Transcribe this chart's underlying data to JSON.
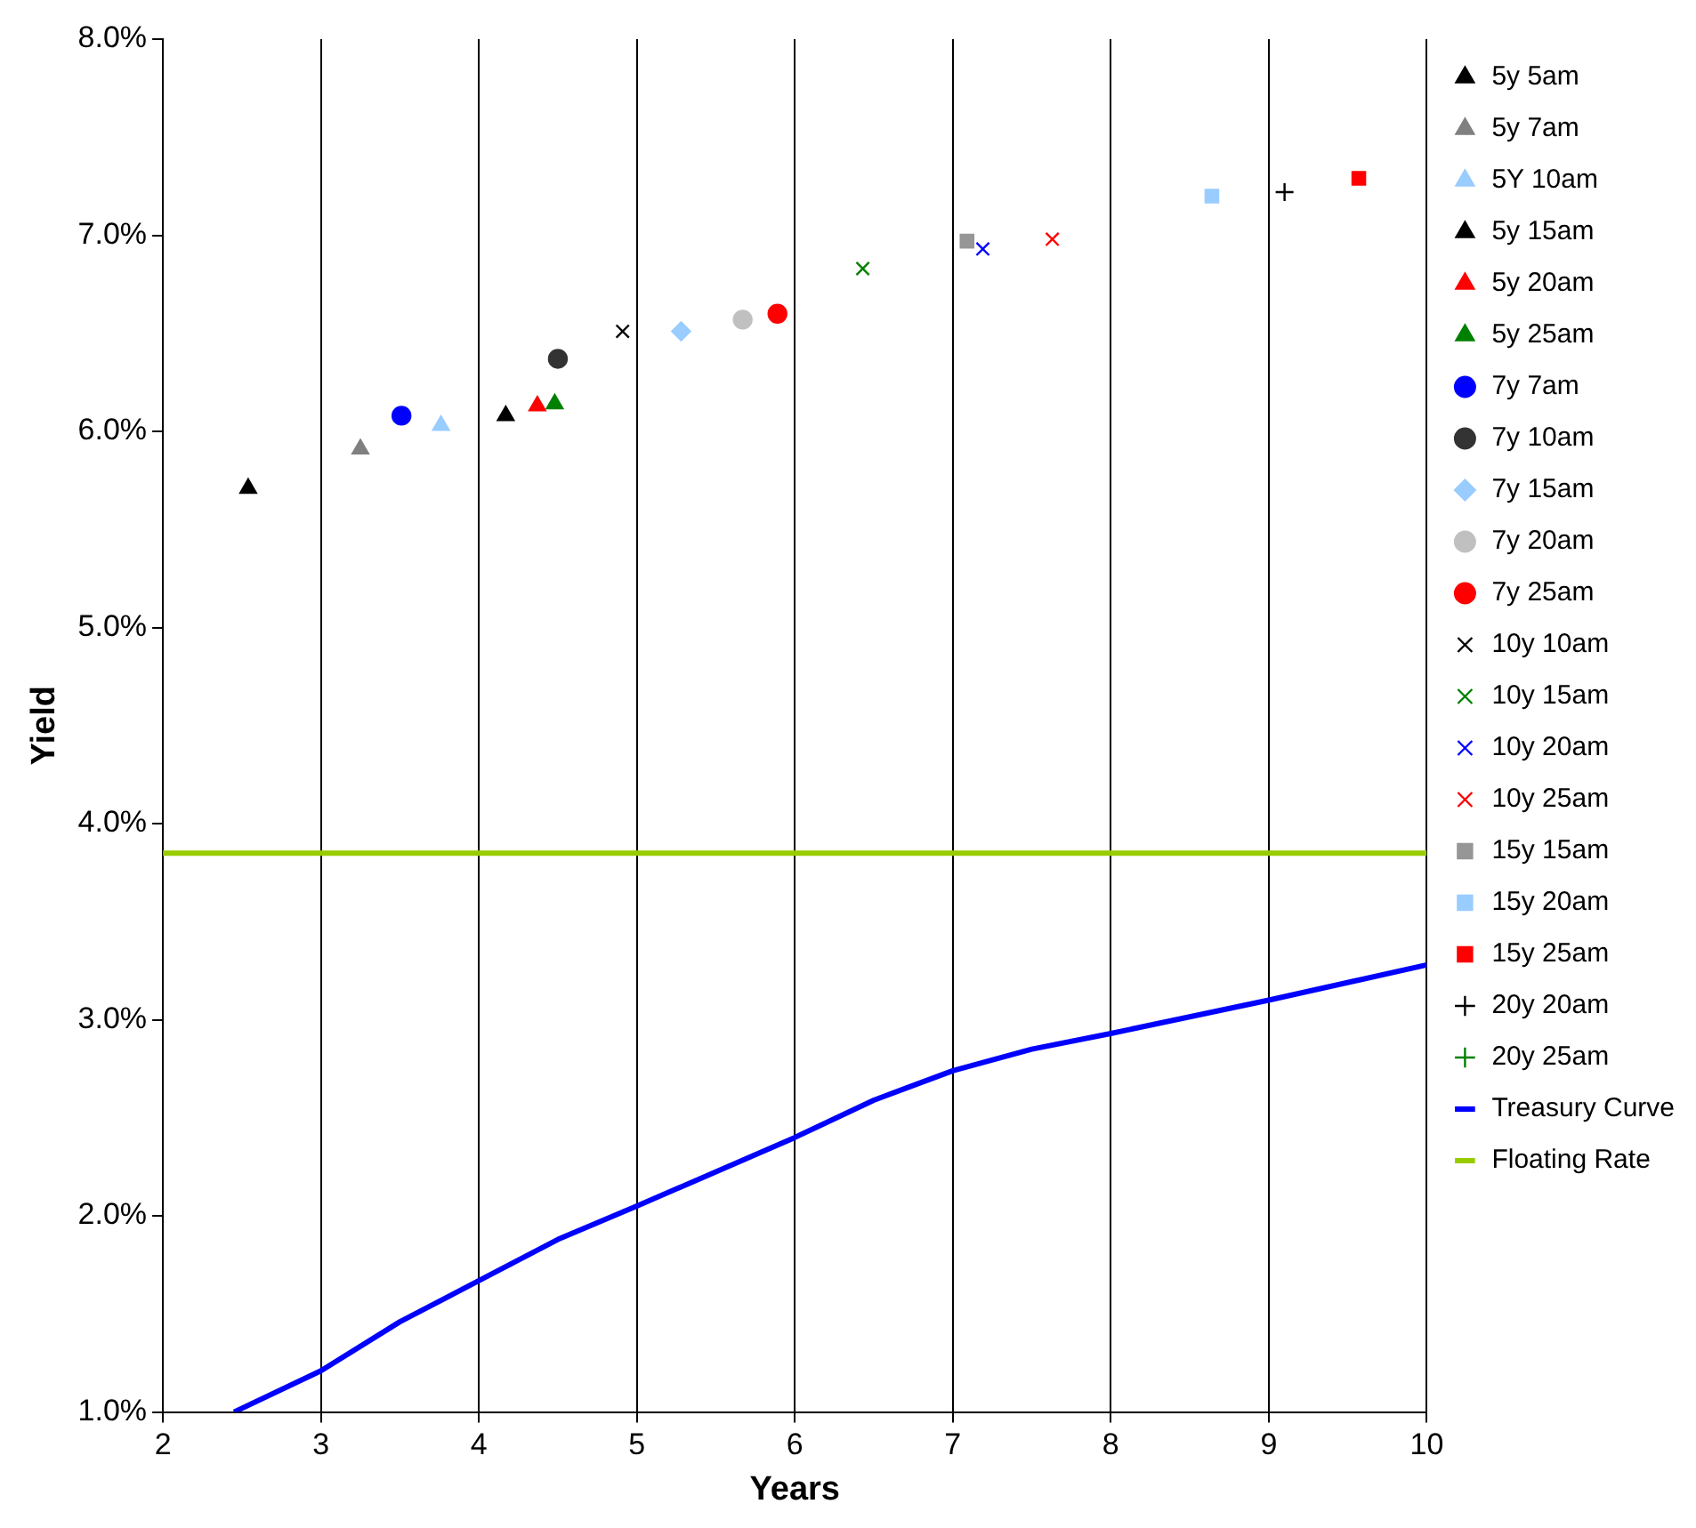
{
  "chart_data": {
    "type": "scatter",
    "xlabel": "Years",
    "ylabel": "Yield",
    "xlim": [
      2,
      10
    ],
    "xticks": [
      2,
      3,
      4,
      5,
      6,
      7,
      8,
      9,
      10
    ],
    "ylim": [
      1,
      8
    ],
    "yticks": [
      {
        "value": 1,
        "label": "1.0%"
      },
      {
        "value": 2,
        "label": "2.0%"
      },
      {
        "value": 3,
        "label": "3.0%"
      },
      {
        "value": 4,
        "label": "4.0%"
      },
      {
        "value": 5,
        "label": "5.0%"
      },
      {
        "value": 6,
        "label": "6.0%"
      },
      {
        "value": 7,
        "label": "7.0%"
      },
      {
        "value": 8,
        "label": "8.0%"
      }
    ],
    "grid": "x",
    "legend": "right",
    "series": [
      {
        "name": "5y 5am",
        "color": "#000000",
        "marker": "triangle",
        "x": [
          2.54
        ],
        "values": [
          5.71
        ]
      },
      {
        "name": "5y 7am",
        "color": "#808080",
        "marker": "triangle",
        "x": [
          3.25
        ],
        "values": [
          5.91
        ]
      },
      {
        "name": "5Y 10am",
        "color": "#99ccff",
        "marker": "triangle",
        "x": [
          3.76
        ],
        "values": [
          6.03
        ]
      },
      {
        "name": "5y 15am",
        "color": "#000000",
        "marker": "triangle",
        "x": [
          4.17
        ],
        "values": [
          6.08
        ]
      },
      {
        "name": "5y 20am",
        "color": "#ff0000",
        "marker": "triangle",
        "x": [
          4.37
        ],
        "values": [
          6.13
        ]
      },
      {
        "name": "5y 25am",
        "color": "#008000",
        "marker": "triangle",
        "x": [
          4.48
        ],
        "values": [
          6.14
        ]
      },
      {
        "name": "7y 7am",
        "color": "#0000ff",
        "marker": "circle",
        "x": [
          3.51
        ],
        "values": [
          6.08
        ]
      },
      {
        "name": "7y 10am",
        "color": "#333333",
        "marker": "circle",
        "x": [
          4.5
        ],
        "values": [
          6.37
        ]
      },
      {
        "name": "7y 15am",
        "color": "#99ccff",
        "marker": "diamond",
        "x": [
          5.28
        ],
        "values": [
          6.51
        ]
      },
      {
        "name": "7y 20am",
        "color": "#c0c0c0",
        "marker": "circle",
        "x": [
          5.67
        ],
        "values": [
          6.57
        ]
      },
      {
        "name": "7y 25am",
        "color": "#ff0000",
        "marker": "circle",
        "x": [
          5.89
        ],
        "values": [
          6.6
        ]
      },
      {
        "name": "10y 10am",
        "color": "#000000",
        "marker": "cross",
        "x": [
          4.91
        ],
        "values": [
          6.51
        ]
      },
      {
        "name": "10y 15am",
        "color": "#008000",
        "marker": "cross",
        "x": [
          6.43
        ],
        "values": [
          6.83
        ]
      },
      {
        "name": "10y 20am",
        "color": "#0000ff",
        "marker": "cross",
        "x": [
          7.19
        ],
        "values": [
          6.93
        ]
      },
      {
        "name": "10y 25am",
        "color": "#ff0000",
        "marker": "cross",
        "x": [
          7.63
        ],
        "values": [
          6.98
        ]
      },
      {
        "name": "15y 15am",
        "color": "#969696",
        "marker": "square",
        "x": [
          7.09
        ],
        "values": [
          6.97
        ]
      },
      {
        "name": "15y 20am",
        "color": "#99ccff",
        "marker": "square",
        "x": [
          8.64
        ],
        "values": [
          7.2
        ]
      },
      {
        "name": "15y 25am",
        "color": "#ff0000",
        "marker": "square",
        "x": [
          9.57
        ],
        "values": [
          7.29
        ]
      },
      {
        "name": "20y 20am",
        "color": "#000000",
        "marker": "plus",
        "x": [
          9.1
        ],
        "values": [
          7.22
        ]
      },
      {
        "name": "20y 25am",
        "color": "#008000",
        "marker": "plus"
      },
      {
        "name": "Treasury Curve",
        "type": "line",
        "color": "#0000ff",
        "marker": "none",
        "x": [
          2.45,
          3,
          3.5,
          4,
          4.5,
          5,
          6,
          6.5,
          7,
          7.5,
          8,
          9,
          10
        ],
        "values": [
          1.0,
          1.21,
          1.46,
          1.67,
          1.88,
          2.05,
          2.4,
          2.59,
          2.74,
          2.85,
          2.93,
          3.1,
          3.28
        ]
      },
      {
        "name": "Floating Rate",
        "type": "line",
        "color": "#99cc00",
        "marker": "none",
        "x": [
          2,
          10
        ],
        "values": [
          3.85,
          3.85
        ]
      }
    ]
  }
}
